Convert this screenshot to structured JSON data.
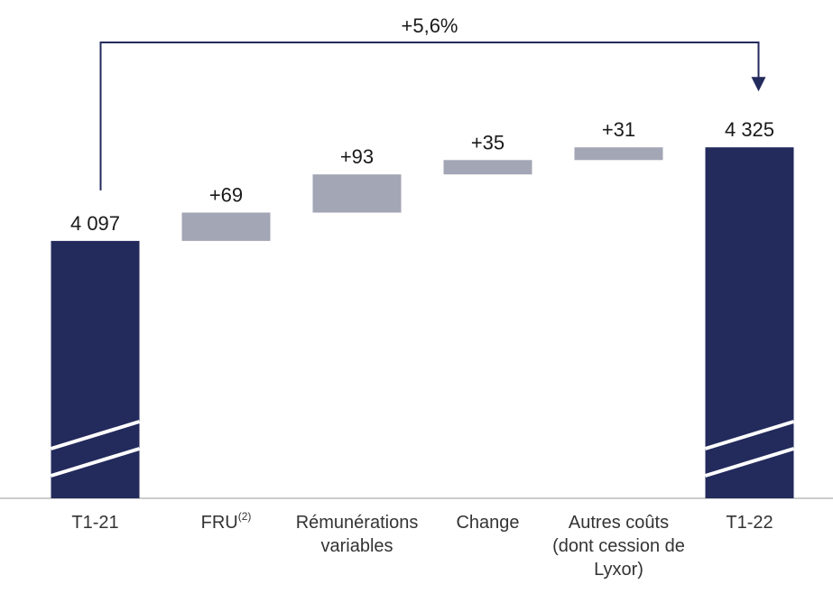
{
  "chart_data": {
    "type": "waterfall",
    "categories": [
      "T1-21",
      "FRU",
      "Rémunérations variables",
      "Change",
      "Autres coûts (dont cession de Lyxor)",
      "T1-22"
    ],
    "category_superscripts": [
      null,
      "(2)",
      null,
      null,
      null,
      null
    ],
    "measures": [
      "total",
      "relative",
      "relative",
      "relative",
      "relative",
      "total"
    ],
    "values": [
      4097,
      69,
      93,
      35,
      31,
      4325
    ],
    "value_labels": [
      "4 097",
      "+69",
      "+93",
      "+35",
      "+31",
      "4 325"
    ],
    "colors": {
      "total": "#232a5c",
      "relative": "#a3a6b5"
    },
    "ylim": [
      3470,
      4420
    ],
    "axis_break": true,
    "annotation": "+5,6%"
  }
}
